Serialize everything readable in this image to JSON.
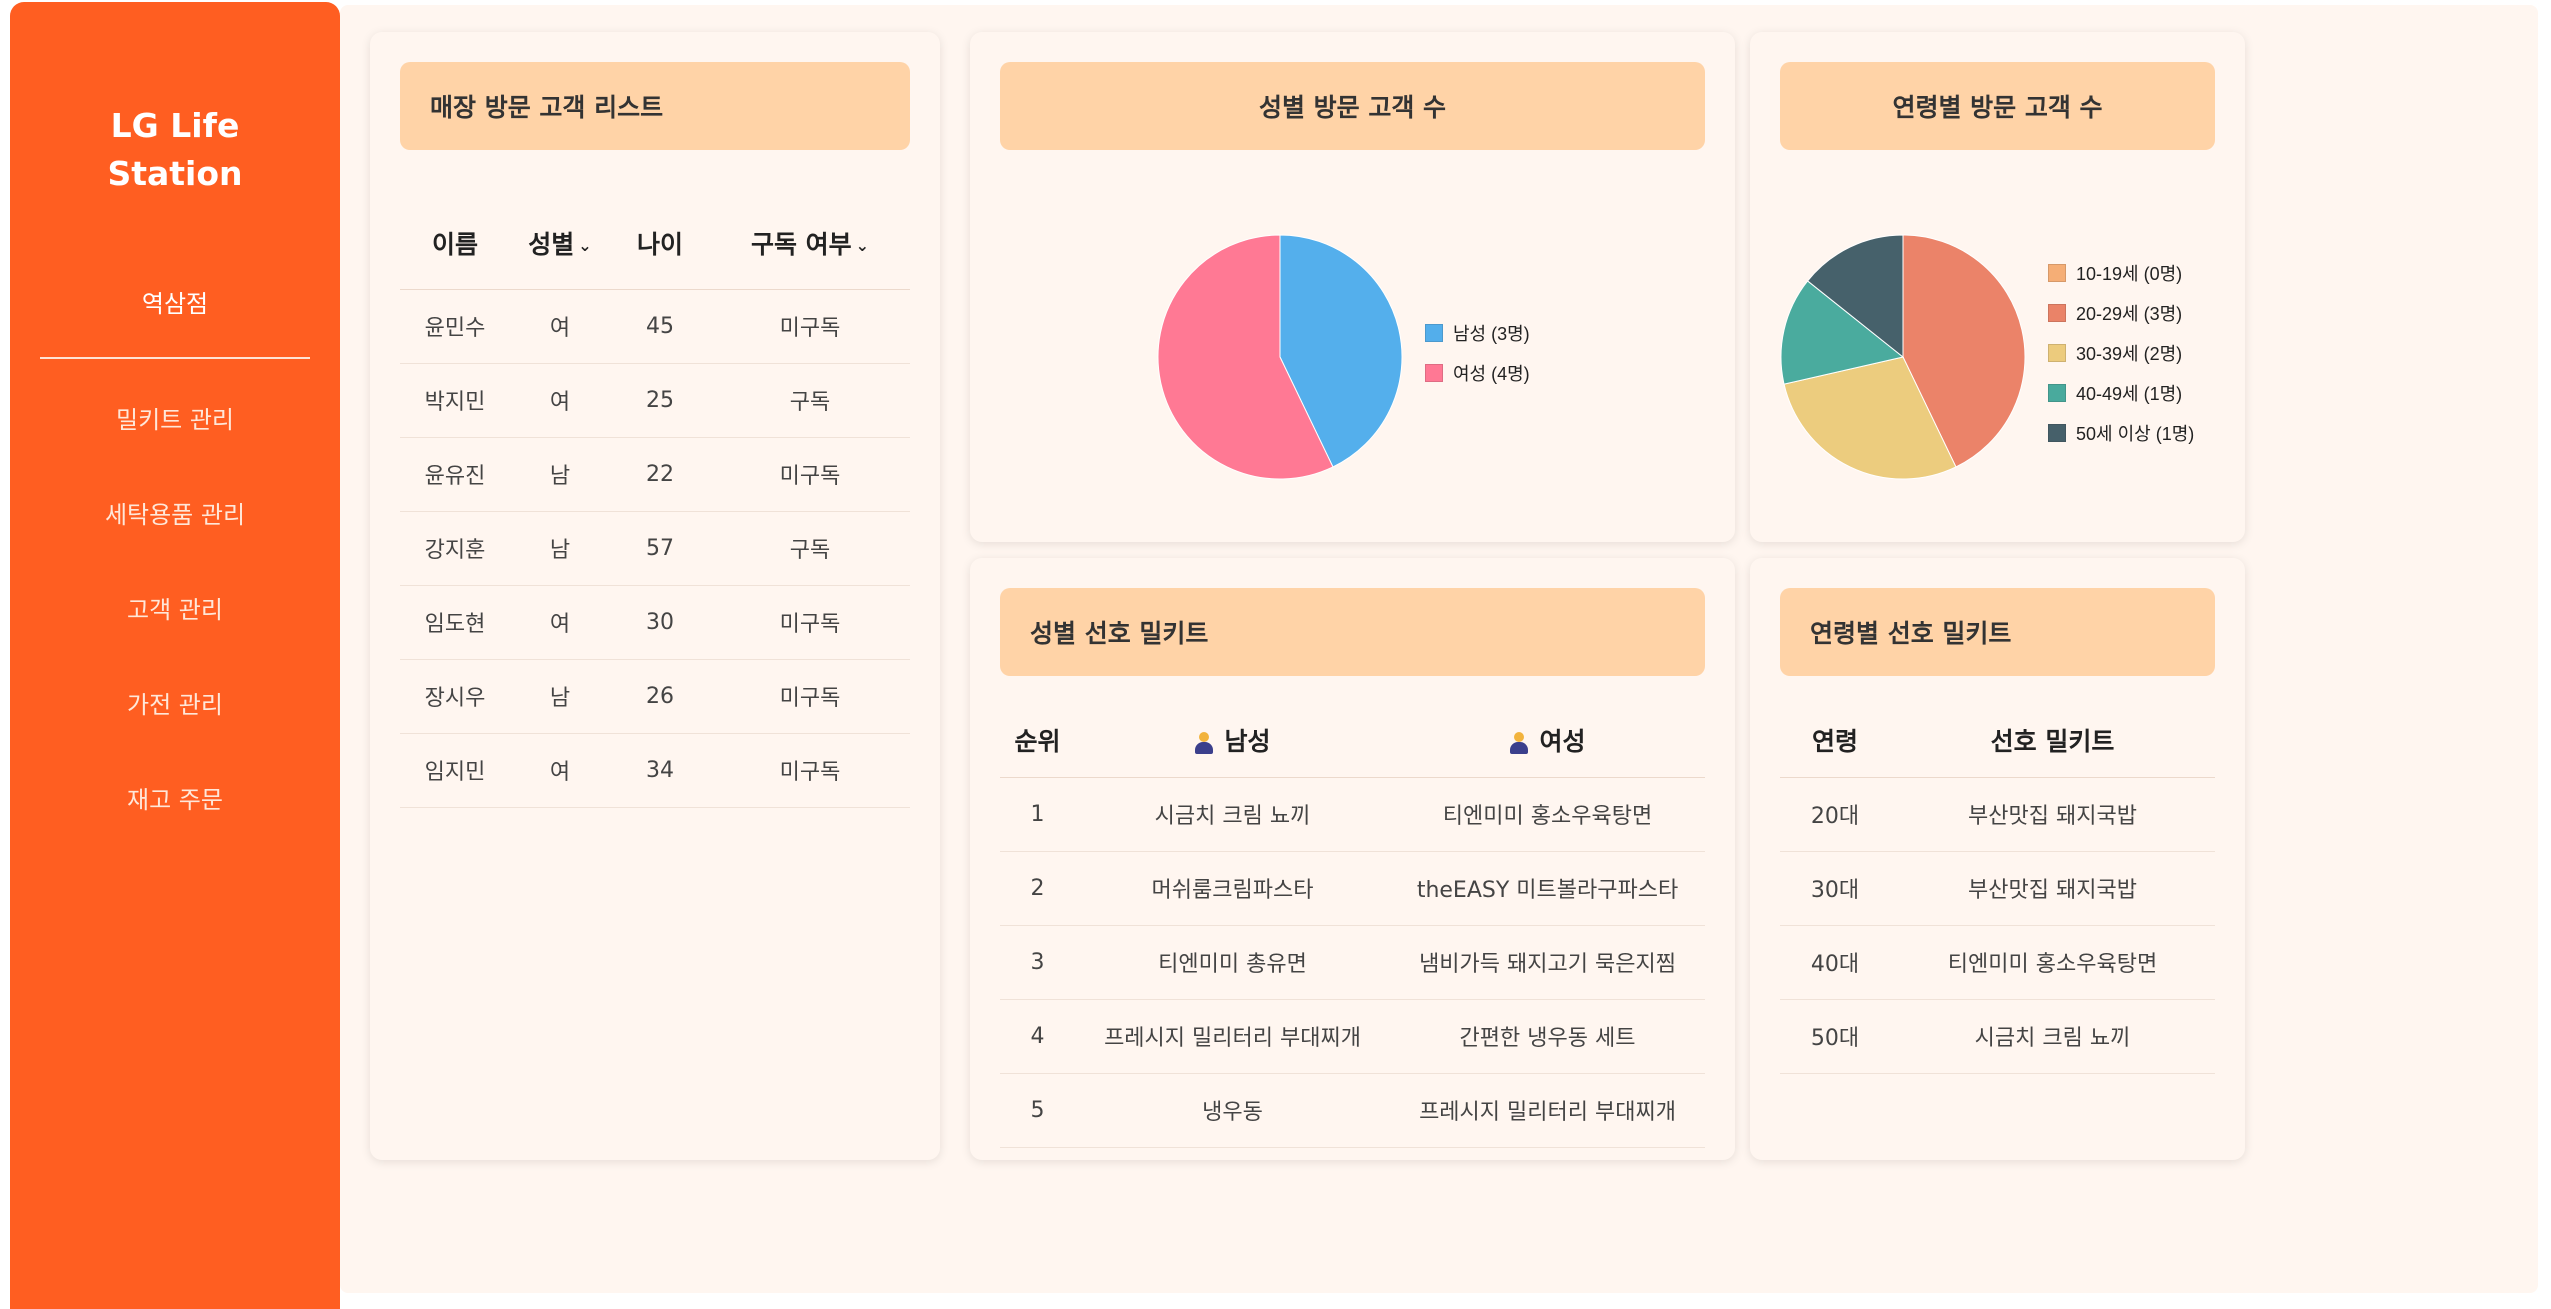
{
  "sidebar": {
    "brand_line1": "LG Life",
    "brand_line2": "Station",
    "store": "역삼점",
    "nav": [
      "밀키트 관리",
      "세탁용품 관리",
      "고객 관리",
      "가전 관리",
      "재고 주문"
    ]
  },
  "visitors": {
    "title": "매장 방문 고객 리스트",
    "headers": [
      "이름",
      "성별",
      "나이",
      "구독 여부"
    ],
    "rows": [
      [
        "윤민수",
        "여",
        "45",
        "미구독"
      ],
      [
        "박지민",
        "여",
        "25",
        "구독"
      ],
      [
        "윤유진",
        "남",
        "22",
        "미구독"
      ],
      [
        "강지훈",
        "남",
        "57",
        "구독"
      ],
      [
        "임도현",
        "여",
        "30",
        "미구독"
      ],
      [
        "장시우",
        "남",
        "26",
        "미구독"
      ],
      [
        "임지민",
        "여",
        "34",
        "미구독"
      ]
    ]
  },
  "gender_chart": {
    "title": "성별 방문 고객 수",
    "chart_data": {
      "type": "pie",
      "categories": [
        "남성 (3명)",
        "여성 (4명)"
      ],
      "values": [
        3,
        4
      ],
      "colors": [
        "#36a2eb",
        "#ff6384"
      ]
    }
  },
  "age_chart": {
    "title": "연령별 방문 고객 수",
    "chart_data": {
      "type": "pie",
      "categories": [
        "10-19세 (0명)",
        "20-29세 (3명)",
        "30-39세 (2명)",
        "40-49세 (1명)",
        "50세 이상 (1명)"
      ],
      "values": [
        0,
        3,
        2,
        1,
        1
      ],
      "colors": [
        "#f4a261",
        "#e76f51",
        "#e9c46a",
        "#2a9d8f",
        "#264653"
      ]
    }
  },
  "gender_pref": {
    "title": "성별 선호 밀키트",
    "headers": [
      "순위",
      "남성",
      "여성"
    ],
    "rows": [
      [
        "1",
        "시금치 크림 뇨끼",
        "티엔미미 홍소우육탕면"
      ],
      [
        "2",
        "머쉬룸크림파스타",
        "theEASY 미트볼라구파스타"
      ],
      [
        "3",
        "티엔미미 총유면",
        "냄비가득 돼지고기 묵은지찜"
      ],
      [
        "4",
        "프레시지 밀리터리 부대찌개",
        "간편한 냉우동 세트"
      ],
      [
        "5",
        "냉우동",
        "프레시지 밀리터리 부대찌개"
      ]
    ]
  },
  "age_pref": {
    "title": "연령별 선호 밀키트",
    "headers": [
      "연령",
      "선호 밀키트"
    ],
    "rows": [
      [
        "20대",
        "부산맛집 돼지국밥"
      ],
      [
        "30대",
        "부산맛집 돼지국밥"
      ],
      [
        "40대",
        "티엔미미 홍소우육탕면"
      ],
      [
        "50대",
        "시금치 크림 뇨끼"
      ]
    ]
  }
}
